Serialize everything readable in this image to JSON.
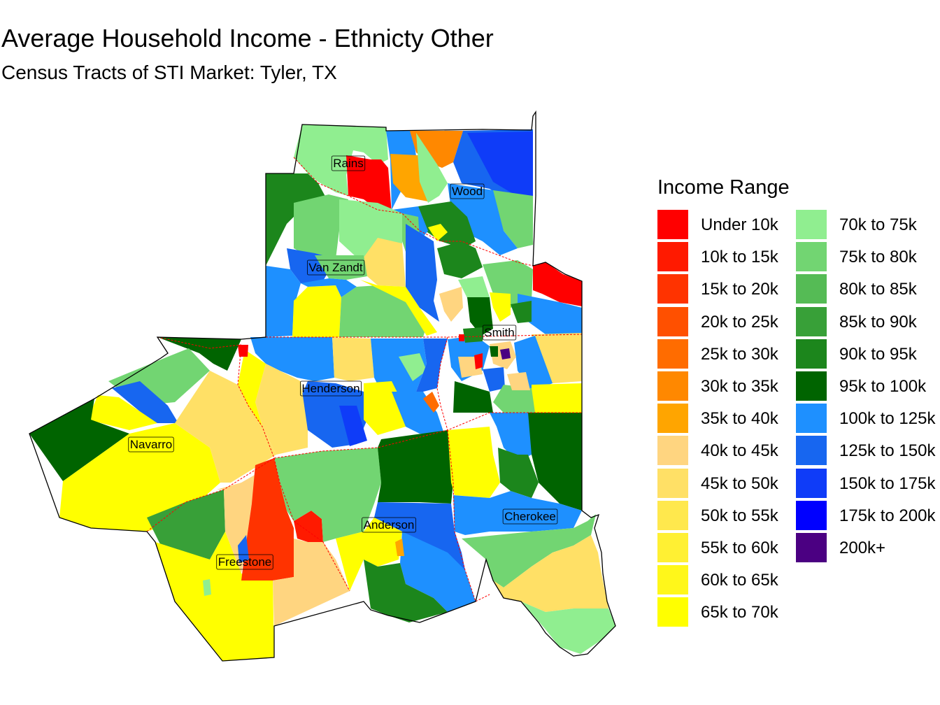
{
  "title": "Average Household Income - Ethnicty Other",
  "subtitle": "Census Tracts of STI Market: Tyler, TX",
  "legend": {
    "title": "Income Range",
    "items": [
      {
        "label": "Under 10k",
        "color": "#ff0000"
      },
      {
        "label": "10k to 15k",
        "color": "#ff1a00"
      },
      {
        "label": "15k to 20k",
        "color": "#ff3300"
      },
      {
        "label": "20k to 25k",
        "color": "#ff5000"
      },
      {
        "label": "25k to 30k",
        "color": "#ff6c00"
      },
      {
        "label": "30k to 35k",
        "color": "#ff8800"
      },
      {
        "label": "35k to 40k",
        "color": "#ffa500"
      },
      {
        "label": "40k to 45k",
        "color": "#ffd580"
      },
      {
        "label": "45k to 50k",
        "color": "#ffe066"
      },
      {
        "label": "50k to 55k",
        "color": "#ffe84d"
      },
      {
        "label": "55k to 60k",
        "color": "#fff033"
      },
      {
        "label": "60k to 65k",
        "color": "#fff71a"
      },
      {
        "label": "65k to 70k",
        "color": "#ffff00"
      },
      {
        "label": "70k to 75k",
        "color": "#90ee90"
      },
      {
        "label": "75k to 80k",
        "color": "#72d572"
      },
      {
        "label": "80k to 85k",
        "color": "#55bb55"
      },
      {
        "label": "85k to 90k",
        "color": "#38a038"
      },
      {
        "label": "90k to 95k",
        "color": "#1c861c"
      },
      {
        "label": "95k to 100k",
        "color": "#006400"
      },
      {
        "label": "100k to 125k",
        "color": "#1e90ff"
      },
      {
        "label": "125k to 150k",
        "color": "#1766f0"
      },
      {
        "label": "150k to 175k",
        "color": "#0f3cf8"
      },
      {
        "label": "175k to 200k",
        "color": "#0000ff"
      },
      {
        "label": "200k+",
        "color": "#4b0082"
      }
    ]
  },
  "counties": [
    {
      "name": "Rains"
    },
    {
      "name": "Wood"
    },
    {
      "name": "Van Zandt"
    },
    {
      "name": "Smith"
    },
    {
      "name": "Henderson"
    },
    {
      "name": "Navarro"
    },
    {
      "name": "Anderson"
    },
    {
      "name": "Cherokee"
    },
    {
      "name": "Freestone"
    }
  ]
}
